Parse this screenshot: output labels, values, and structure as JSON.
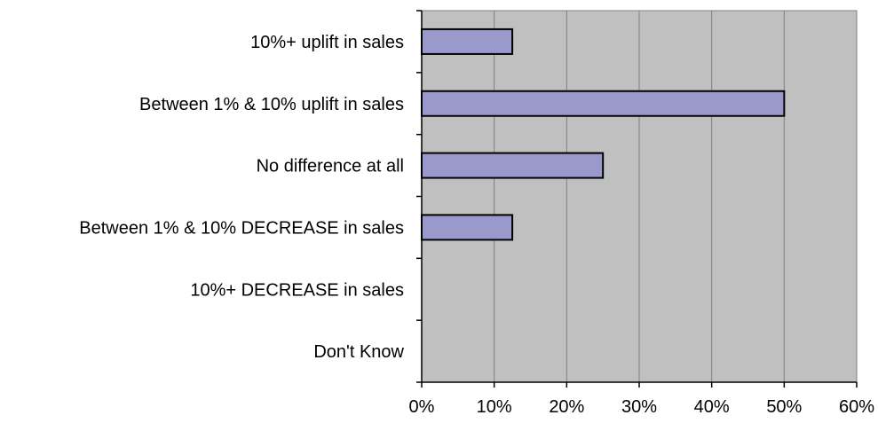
{
  "chart_data": {
    "type": "bar",
    "orientation": "horizontal",
    "categories": [
      "10%+ uplift in sales",
      "Between 1% & 10% uplift in sales",
      "No difference at all",
      "Between 1% & 10% DECREASE in sales",
      "10%+ DECREASE in sales",
      "Don't Know"
    ],
    "values": [
      12.5,
      50,
      25,
      12.5,
      0,
      0
    ],
    "xlim": [
      0,
      60
    ],
    "x_ticks": [
      0,
      10,
      20,
      30,
      40,
      50,
      60
    ],
    "x_tick_labels": [
      "0%",
      "10%",
      "20%",
      "30%",
      "40%",
      "50%",
      "60%"
    ],
    "grid": "vertical",
    "legend": "none",
    "colors": {
      "bar": "#9999cc",
      "bar_border": "#000000",
      "plot_background": "#c0c0c0",
      "grid": "#808080"
    }
  }
}
